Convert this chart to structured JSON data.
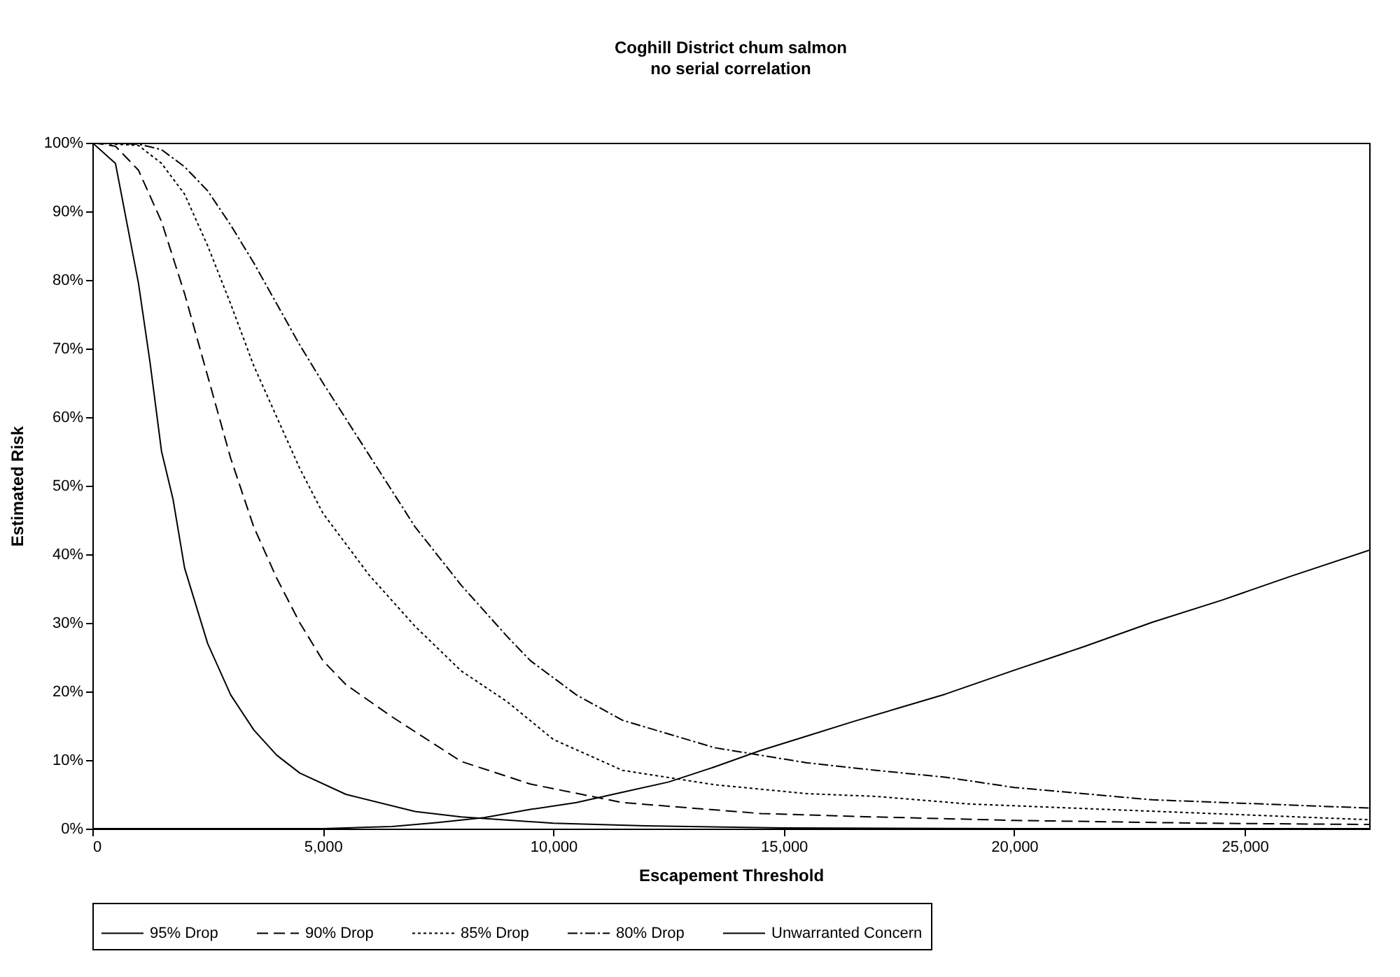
{
  "chart_data": {
    "type": "line",
    "title": "Coghill District chum salmon",
    "subtitle": "no serial correlation",
    "xlabel": "Escapement Threshold",
    "ylabel": "Estimated Risk",
    "xlim": [
      0,
      27700
    ],
    "xticks": [
      0,
      {
        "value": 5000,
        "label": "5,000"
      },
      {
        "value": 10000,
        "label": "10,000"
      },
      {
        "value": 15000,
        "label": "15,000"
      },
      {
        "value": 20000,
        "label": "20,000"
      },
      {
        "value": 25000,
        "label": "25,000"
      }
    ],
    "ylim": [
      0,
      100
    ],
    "yticks": [
      {
        "value": 0,
        "label": "0%"
      },
      {
        "value": 10,
        "label": "10%"
      },
      {
        "value": 20,
        "label": "20%"
      },
      {
        "value": 30,
        "label": "30%"
      },
      {
        "value": 40,
        "label": "40%"
      },
      {
        "value": 50,
        "label": "50%"
      },
      {
        "value": 60,
        "label": "60%"
      },
      {
        "value": 70,
        "label": "70%"
      },
      {
        "value": 80,
        "label": "80%"
      },
      {
        "value": 90,
        "label": "90%"
      },
      {
        "value": 100,
        "label": "100%"
      }
    ],
    "grid": false,
    "legend": "bottom",
    "marker": "none",
    "series": [
      {
        "name": "95% Drop",
        "color": "#000000",
        "line_style": "solid",
        "x": [
          0,
          500,
          1000,
          1250,
          1500,
          1750,
          2000,
          2500,
          3000,
          3500,
          4000,
          4500,
          5500,
          7000,
          8000,
          10000,
          12000,
          15000,
          20000,
          27700
        ],
        "values": [
          100,
          97,
          79.5,
          68,
          55,
          48,
          38,
          27,
          19.5,
          14.4,
          10.7,
          8.1,
          5,
          2.5,
          1.7,
          0.8,
          0.4,
          0.1,
          0,
          0
        ]
      },
      {
        "name": "90% Drop",
        "color": "#000000",
        "line_style": "dashed",
        "x": [
          0,
          500,
          1000,
          1500,
          2000,
          2500,
          3000,
          3500,
          4000,
          4500,
          5000,
          5500,
          6500,
          8000,
          9500,
          11500,
          14500,
          17000,
          20000,
          24000,
          27700
        ],
        "values": [
          100,
          99.5,
          96,
          88.5,
          78,
          66,
          54,
          44,
          36.5,
          30,
          24.5,
          21,
          16.3,
          9.8,
          6.5,
          3.8,
          2.2,
          1.7,
          1.2,
          0.8,
          0.6
        ]
      },
      {
        "name": "85% Drop",
        "color": "#000000",
        "line_style": "dotted",
        "x": [
          0,
          1000,
          1500,
          2000,
          2500,
          3000,
          3500,
          4000,
          4500,
          5000,
          6000,
          7000,
          8000,
          9000,
          10000,
          11500,
          13500,
          15500,
          17000,
          19000,
          22000,
          27700
        ],
        "values": [
          100,
          99.6,
          97,
          92.5,
          85,
          76.5,
          67.5,
          60,
          52.5,
          46,
          37,
          29.5,
          23,
          18.5,
          13,
          8.5,
          6.4,
          5.1,
          4.7,
          3.6,
          2.8,
          1.3
        ]
      },
      {
        "name": "80% Drop",
        "color": "#000000",
        "line_style": "dashdot",
        "x": [
          0,
          1000,
          1500,
          2000,
          2500,
          3000,
          3500,
          4000,
          4500,
          5000,
          6000,
          7000,
          8000,
          9000,
          9500,
          10500,
          11500,
          13500,
          15500,
          17000,
          18500,
          20000,
          23000,
          27700
        ],
        "values": [
          100,
          99.8,
          99,
          96.5,
          93,
          88,
          82.5,
          76.5,
          70.5,
          65,
          54.5,
          44,
          35.5,
          28,
          24.5,
          19.5,
          15.8,
          11.8,
          9.6,
          8.5,
          7.5,
          6,
          4.2,
          3
        ]
      },
      {
        "name": "Unwarranted Concern",
        "color": "#000000",
        "line_style": "solid",
        "x": [
          0,
          5000,
          5500,
          6500,
          7500,
          8500,
          9500,
          10500,
          11500,
          12500,
          13500,
          14500,
          15500,
          16500,
          17500,
          18500,
          20000,
          21500,
          23000,
          24500,
          26000,
          27700
        ],
        "values": [
          0,
          0,
          0.1,
          0.3,
          0.9,
          1.6,
          2.8,
          3.8,
          5.3,
          6.8,
          9,
          11.4,
          13.5,
          15.6,
          17.6,
          19.6,
          23.1,
          26.5,
          30.1,
          33.3,
          36.8,
          40.6
        ]
      }
    ]
  }
}
